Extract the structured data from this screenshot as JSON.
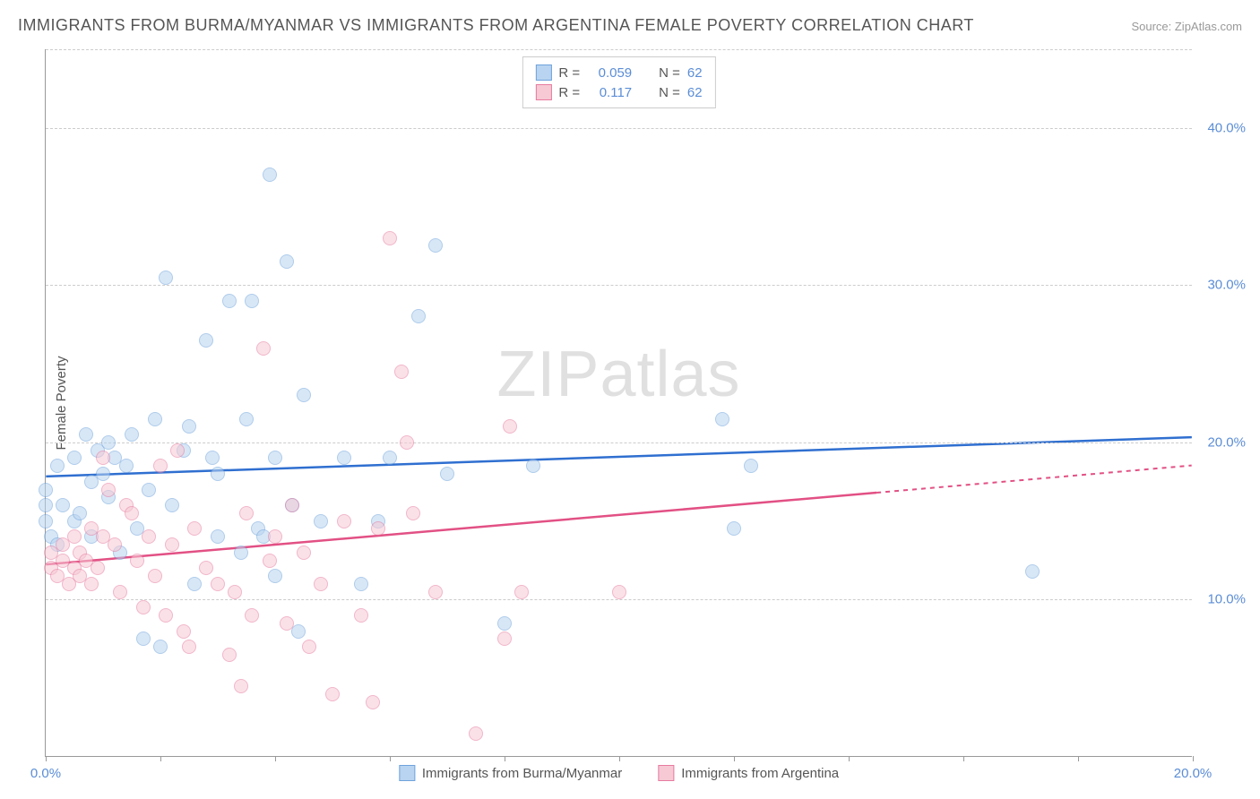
{
  "title": "IMMIGRANTS FROM BURMA/MYANMAR VS IMMIGRANTS FROM ARGENTINA FEMALE POVERTY CORRELATION CHART",
  "source": "Source: ZipAtlas.com",
  "watermark": "ZIPatlas",
  "ylabel": "Female Poverty",
  "chart": {
    "type": "scatter",
    "xlim": [
      0,
      20
    ],
    "ylim": [
      0,
      45
    ],
    "x_ticks": [
      0,
      20
    ],
    "x_tick_labels": [
      "0.0%",
      "20.0%"
    ],
    "x_minor_ticks": [
      2,
      4,
      6,
      8,
      10,
      12,
      14,
      16,
      18
    ],
    "y_ticks": [
      10,
      20,
      30,
      40
    ],
    "y_tick_labels": [
      "10.0%",
      "20.0%",
      "30.0%",
      "40.0%"
    ],
    "grid_color": "#cccccc",
    "background": "#ffffff",
    "marker_radius": 8,
    "marker_stroke_width": 1.5,
    "series": [
      {
        "name": "Immigrants from Burma/Myanmar",
        "fill": "#b9d4f0",
        "stroke": "#6fa3dc",
        "fill_opacity": 0.55,
        "R": "0.059",
        "N": "62",
        "trend": {
          "x1": 0,
          "y1": 17.8,
          "x2": 20,
          "y2": 20.3,
          "color": "#2f6fd0",
          "dash_from_x": 20
        },
        "points": [
          [
            0.0,
            15.0
          ],
          [
            0.0,
            16.0
          ],
          [
            0.0,
            17.0
          ],
          [
            0.1,
            14.0
          ],
          [
            0.2,
            13.5
          ],
          [
            0.2,
            18.5
          ],
          [
            0.3,
            16.0
          ],
          [
            0.5,
            19.0
          ],
          [
            0.5,
            15.0
          ],
          [
            0.6,
            15.5
          ],
          [
            0.7,
            20.5
          ],
          [
            0.8,
            14.0
          ],
          [
            0.8,
            17.5
          ],
          [
            0.9,
            19.5
          ],
          [
            1.0,
            18.0
          ],
          [
            1.1,
            20.0
          ],
          [
            1.1,
            16.5
          ],
          [
            1.2,
            19.0
          ],
          [
            1.3,
            13.0
          ],
          [
            1.4,
            18.5
          ],
          [
            1.5,
            20.5
          ],
          [
            1.6,
            14.5
          ],
          [
            1.7,
            7.5
          ],
          [
            1.8,
            17.0
          ],
          [
            1.9,
            21.5
          ],
          [
            2.0,
            7.0
          ],
          [
            2.1,
            30.5
          ],
          [
            2.2,
            16.0
          ],
          [
            2.4,
            19.5
          ],
          [
            2.5,
            21.0
          ],
          [
            2.6,
            11.0
          ],
          [
            2.8,
            26.5
          ],
          [
            2.9,
            19.0
          ],
          [
            3.0,
            14.0
          ],
          [
            3.0,
            18.0
          ],
          [
            3.2,
            29.0
          ],
          [
            3.4,
            13.0
          ],
          [
            3.5,
            21.5
          ],
          [
            3.6,
            29.0
          ],
          [
            3.7,
            14.5
          ],
          [
            3.8,
            14.0
          ],
          [
            3.9,
            37.0
          ],
          [
            4.0,
            19.0
          ],
          [
            4.0,
            11.5
          ],
          [
            4.2,
            31.5
          ],
          [
            4.3,
            16.0
          ],
          [
            4.4,
            8.0
          ],
          [
            4.5,
            23.0
          ],
          [
            4.8,
            15.0
          ],
          [
            5.2,
            19.0
          ],
          [
            5.5,
            11.0
          ],
          [
            5.8,
            15.0
          ],
          [
            6.0,
            19.0
          ],
          [
            6.5,
            28.0
          ],
          [
            6.8,
            32.5
          ],
          [
            7.0,
            18.0
          ],
          [
            8.0,
            8.5
          ],
          [
            8.5,
            18.5
          ],
          [
            11.8,
            21.5
          ],
          [
            12.0,
            14.5
          ],
          [
            12.3,
            18.5
          ],
          [
            17.2,
            11.8
          ]
        ]
      },
      {
        "name": "Immigrants from Argentina",
        "fill": "#f6c9d4",
        "stroke": "#e77ba0",
        "fill_opacity": 0.55,
        "R": "0.117",
        "N": "62",
        "trend": {
          "x1": 0,
          "y1": 12.2,
          "x2": 20,
          "y2": 18.5,
          "color": "#e25084",
          "dash_from_x": 14.5
        },
        "points": [
          [
            0.1,
            12.0
          ],
          [
            0.1,
            13.0
          ],
          [
            0.2,
            11.5
          ],
          [
            0.3,
            12.5
          ],
          [
            0.3,
            13.5
          ],
          [
            0.4,
            11.0
          ],
          [
            0.5,
            12.0
          ],
          [
            0.5,
            14.0
          ],
          [
            0.6,
            11.5
          ],
          [
            0.6,
            13.0
          ],
          [
            0.7,
            12.5
          ],
          [
            0.8,
            14.5
          ],
          [
            0.8,
            11.0
          ],
          [
            0.9,
            12.0
          ],
          [
            1.0,
            14.0
          ],
          [
            1.0,
            19.0
          ],
          [
            1.1,
            17.0
          ],
          [
            1.2,
            13.5
          ],
          [
            1.3,
            10.5
          ],
          [
            1.4,
            16.0
          ],
          [
            1.5,
            15.5
          ],
          [
            1.6,
            12.5
          ],
          [
            1.7,
            9.5
          ],
          [
            1.8,
            14.0
          ],
          [
            1.9,
            11.5
          ],
          [
            2.0,
            18.5
          ],
          [
            2.1,
            9.0
          ],
          [
            2.2,
            13.5
          ],
          [
            2.3,
            19.5
          ],
          [
            2.4,
            8.0
          ],
          [
            2.5,
            7.0
          ],
          [
            2.6,
            14.5
          ],
          [
            2.8,
            12.0
          ],
          [
            3.0,
            11.0
          ],
          [
            3.2,
            6.5
          ],
          [
            3.3,
            10.5
          ],
          [
            3.4,
            4.5
          ],
          [
            3.5,
            15.5
          ],
          [
            3.6,
            9.0
          ],
          [
            3.8,
            26.0
          ],
          [
            3.9,
            12.5
          ],
          [
            4.0,
            14.0
          ],
          [
            4.2,
            8.5
          ],
          [
            4.3,
            16.0
          ],
          [
            4.5,
            13.0
          ],
          [
            4.6,
            7.0
          ],
          [
            4.8,
            11.0
          ],
          [
            5.0,
            4.0
          ],
          [
            5.2,
            15.0
          ],
          [
            5.5,
            9.0
          ],
          [
            5.7,
            3.5
          ],
          [
            5.8,
            14.5
          ],
          [
            6.0,
            33.0
          ],
          [
            6.2,
            24.5
          ],
          [
            6.3,
            20.0
          ],
          [
            6.4,
            15.5
          ],
          [
            6.8,
            10.5
          ],
          [
            7.5,
            1.5
          ],
          [
            8.0,
            7.5
          ],
          [
            8.1,
            21.0
          ],
          [
            8.3,
            10.5
          ],
          [
            10.0,
            10.5
          ]
        ]
      }
    ]
  }
}
